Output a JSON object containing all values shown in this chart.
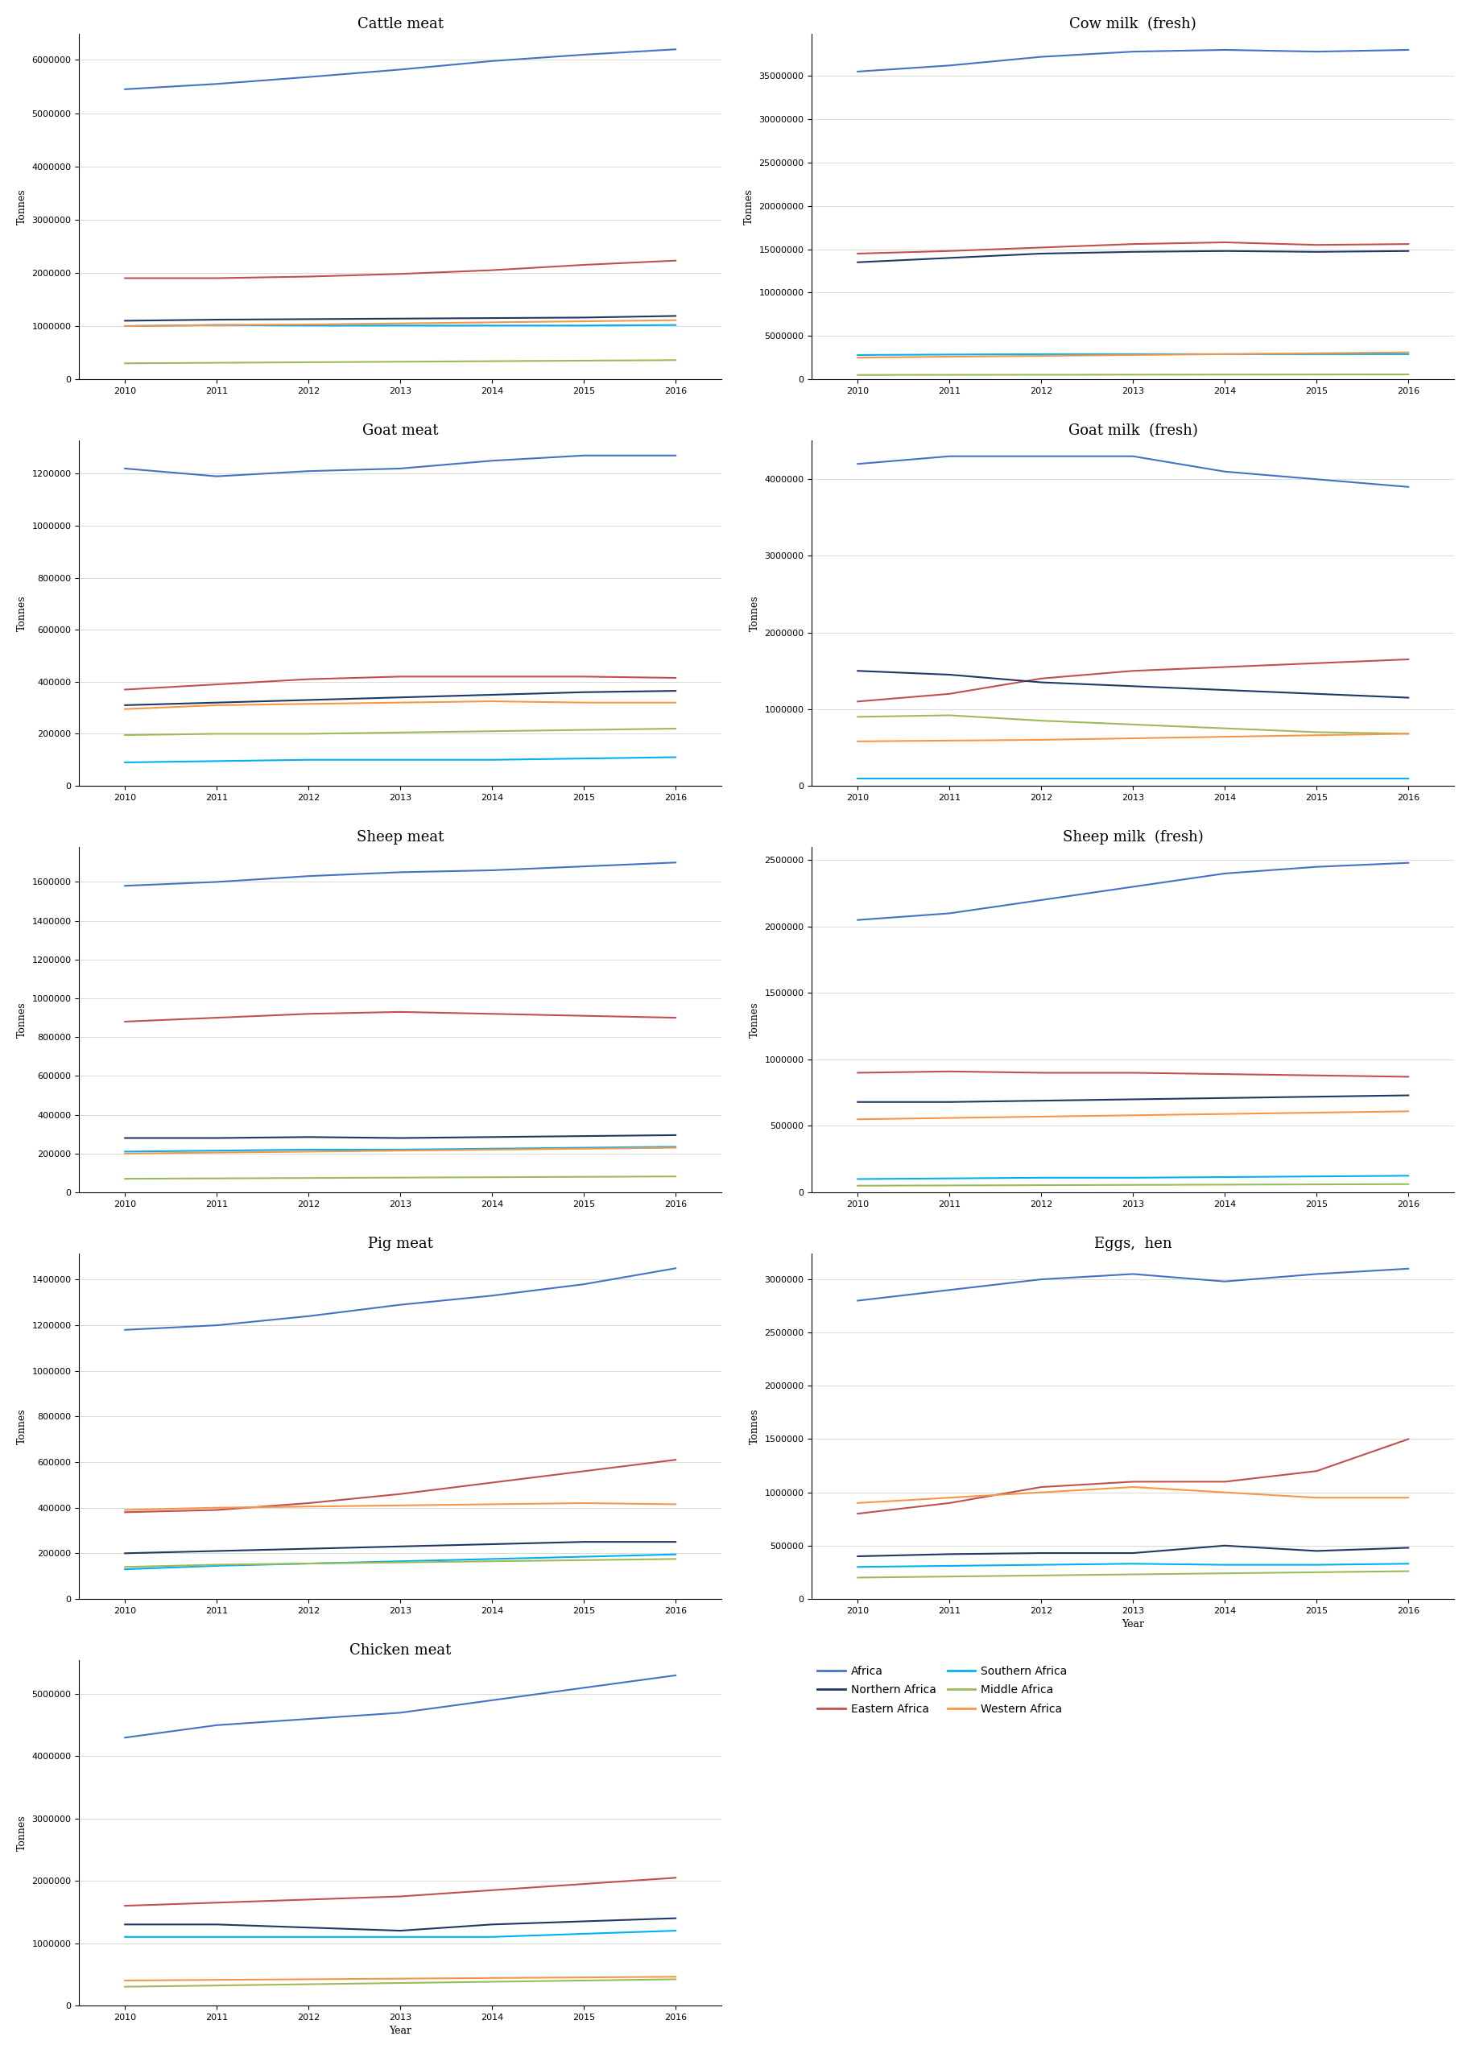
{
  "years": [
    2010,
    2011,
    2012,
    2013,
    2014,
    2015,
    2016
  ],
  "series_colors": {
    "Africa": "#4472C4",
    "Eastern Africa": "#C0504D",
    "Northern Africa": "#1F3864",
    "Southern Africa": "#00B0F0",
    "Middle Africa": "#9BBB59",
    "Western Africa": "#F79646"
  },
  "series_order": [
    "Africa",
    "Eastern Africa",
    "Northern Africa",
    "Southern Africa",
    "Middle Africa",
    "Western Africa"
  ],
  "charts": {
    "Cattle meat": {
      "Africa": [
        5450000,
        5550000,
        5680000,
        5820000,
        5980000,
        6100000,
        6200000
      ],
      "Eastern Africa": [
        1900000,
        1900000,
        1930000,
        1980000,
        2050000,
        2150000,
        2230000
      ],
      "Northern Africa": [
        1100000,
        1120000,
        1130000,
        1140000,
        1150000,
        1160000,
        1190000
      ],
      "Southern Africa": [
        1000000,
        1020000,
        1010000,
        1010000,
        1010000,
        1010000,
        1020000
      ],
      "Middle Africa": [
        300000,
        310000,
        320000,
        330000,
        340000,
        350000,
        360000
      ],
      "Western Africa": [
        1000000,
        1020000,
        1030000,
        1050000,
        1070000,
        1090000,
        1110000
      ]
    },
    "Cow milk  (fresh)": {
      "Africa": [
        35500000,
        36200000,
        37200000,
        37800000,
        38000000,
        37800000,
        38000000
      ],
      "Eastern Africa": [
        14500000,
        14800000,
        15200000,
        15600000,
        15800000,
        15500000,
        15600000
      ],
      "Northern Africa": [
        13500000,
        14000000,
        14500000,
        14700000,
        14800000,
        14700000,
        14800000
      ],
      "Southern Africa": [
        2800000,
        2850000,
        2900000,
        2900000,
        2900000,
        2900000,
        2900000
      ],
      "Middle Africa": [
        500000,
        510000,
        520000,
        530000,
        540000,
        550000,
        560000
      ],
      "Western Africa": [
        2500000,
        2600000,
        2700000,
        2800000,
        2900000,
        3000000,
        3100000
      ]
    },
    "Goat meat": {
      "Africa": [
        1220000,
        1190000,
        1210000,
        1220000,
        1250000,
        1270000,
        1270000
      ],
      "Eastern Africa": [
        370000,
        390000,
        410000,
        420000,
        420000,
        420000,
        415000
      ],
      "Northern Africa": [
        310000,
        320000,
        330000,
        340000,
        350000,
        360000,
        365000
      ],
      "Southern Africa": [
        90000,
        95000,
        100000,
        100000,
        100000,
        105000,
        110000
      ],
      "Middle Africa": [
        195000,
        200000,
        200000,
        205000,
        210000,
        215000,
        220000
      ],
      "Western Africa": [
        295000,
        310000,
        315000,
        320000,
        325000,
        320000,
        320000
      ]
    },
    "Goat milk  (fresh)": {
      "Africa": [
        4200000,
        4300000,
        4300000,
        4300000,
        4100000,
        4000000,
        3900000
      ],
      "Eastern Africa": [
        1100000,
        1200000,
        1400000,
        1500000,
        1550000,
        1600000,
        1650000
      ],
      "Northern Africa": [
        1500000,
        1450000,
        1350000,
        1300000,
        1250000,
        1200000,
        1150000
      ],
      "Southern Africa": [
        100000,
        100000,
        100000,
        100000,
        100000,
        100000,
        100000
      ],
      "Middle Africa": [
        900000,
        920000,
        850000,
        800000,
        750000,
        700000,
        680000
      ],
      "Western Africa": [
        580000,
        590000,
        600000,
        620000,
        640000,
        660000,
        680000
      ]
    },
    "Sheep meat": {
      "Africa": [
        1580000,
        1600000,
        1630000,
        1650000,
        1660000,
        1680000,
        1700000
      ],
      "Eastern Africa": [
        880000,
        900000,
        920000,
        930000,
        920000,
        910000,
        900000
      ],
      "Northern Africa": [
        280000,
        280000,
        285000,
        280000,
        285000,
        290000,
        295000
      ],
      "Southern Africa": [
        210000,
        215000,
        220000,
        220000,
        225000,
        230000,
        235000
      ],
      "Middle Africa": [
        70000,
        72000,
        74000,
        76000,
        78000,
        80000,
        82000
      ],
      "Western Africa": [
        200000,
        205000,
        210000,
        215000,
        220000,
        225000,
        230000
      ]
    },
    "Sheep milk  (fresh)": {
      "Africa": [
        2050000,
        2100000,
        2200000,
        2300000,
        2400000,
        2450000,
        2480000
      ],
      "Eastern Africa": [
        900000,
        910000,
        900000,
        900000,
        890000,
        880000,
        870000
      ],
      "Northern Africa": [
        680000,
        680000,
        690000,
        700000,
        710000,
        720000,
        730000
      ],
      "Southern Africa": [
        100000,
        105000,
        110000,
        110000,
        115000,
        120000,
        125000
      ],
      "Middle Africa": [
        50000,
        52000,
        54000,
        56000,
        58000,
        60000,
        62000
      ],
      "Western Africa": [
        550000,
        560000,
        570000,
        580000,
        590000,
        600000,
        610000
      ]
    },
    "Pig meat": {
      "Africa": [
        1180000,
        1200000,
        1240000,
        1290000,
        1330000,
        1380000,
        1450000
      ],
      "Eastern Africa": [
        380000,
        390000,
        420000,
        460000,
        510000,
        560000,
        610000
      ],
      "Northern Africa": [
        200000,
        210000,
        220000,
        230000,
        240000,
        250000,
        250000
      ],
      "Southern Africa": [
        130000,
        145000,
        155000,
        165000,
        175000,
        185000,
        195000
      ],
      "Middle Africa": [
        140000,
        150000,
        155000,
        160000,
        165000,
        170000,
        175000
      ],
      "Western Africa": [
        390000,
        400000,
        405000,
        410000,
        415000,
        420000,
        415000
      ]
    },
    "Eggs,  hen": {
      "Africa": [
        2800000,
        2900000,
        3000000,
        3050000,
        2980000,
        3050000,
        3100000
      ],
      "Eastern Africa": [
        800000,
        900000,
        1050000,
        1100000,
        1100000,
        1200000,
        1500000
      ],
      "Northern Africa": [
        400000,
        420000,
        430000,
        430000,
        500000,
        450000,
        480000
      ],
      "Southern Africa": [
        300000,
        310000,
        320000,
        330000,
        320000,
        320000,
        330000
      ],
      "Middle Africa": [
        200000,
        210000,
        220000,
        230000,
        240000,
        250000,
        260000
      ],
      "Western Africa": [
        900000,
        950000,
        1000000,
        1050000,
        1000000,
        950000,
        950000
      ]
    },
    "Chicken meat": {
      "Africa": [
        4300000,
        4500000,
        4600000,
        4700000,
        4900000,
        5100000,
        5300000
      ],
      "Eastern Africa": [
        1600000,
        1650000,
        1700000,
        1750000,
        1850000,
        1950000,
        2050000
      ],
      "Northern Africa": [
        1300000,
        1300000,
        1250000,
        1200000,
        1300000,
        1350000,
        1400000
      ],
      "Southern Africa": [
        1100000,
        1100000,
        1100000,
        1100000,
        1100000,
        1150000,
        1200000
      ],
      "Middle Africa": [
        300000,
        320000,
        340000,
        360000,
        380000,
        400000,
        420000
      ],
      "Western Africa": [
        400000,
        410000,
        420000,
        430000,
        440000,
        450000,
        460000
      ]
    }
  },
  "titles": [
    "Cattle meat",
    "Cow milk  (fresh)",
    "Goat meat",
    "Goat milk  (fresh)",
    "Sheep meat",
    "Sheep milk  (fresh)",
    "Pig meat",
    "Eggs,  hen",
    "Chicken meat"
  ],
  "legend_col1": [
    "Africa",
    "Eastern Africa",
    "Middle Africa"
  ],
  "legend_col2": [
    "Northern Africa",
    "Southern Africa",
    "Western Africa"
  ]
}
